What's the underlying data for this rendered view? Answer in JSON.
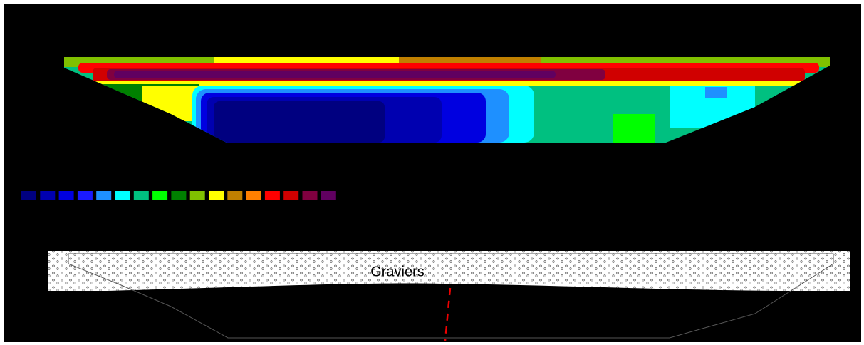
{
  "section": {
    "label": "Graviers"
  },
  "color_scale": [
    "#000080",
    "#0000b0",
    "#0000e0",
    "#1a1aff",
    "#1e90ff",
    "#00ffff",
    "#00c080",
    "#00ff00",
    "#008000",
    "#80c000",
    "#ffff00",
    "#c08000",
    "#ff8000",
    "#ff0000",
    "#d00000",
    "#800040",
    "#600060"
  ]
}
